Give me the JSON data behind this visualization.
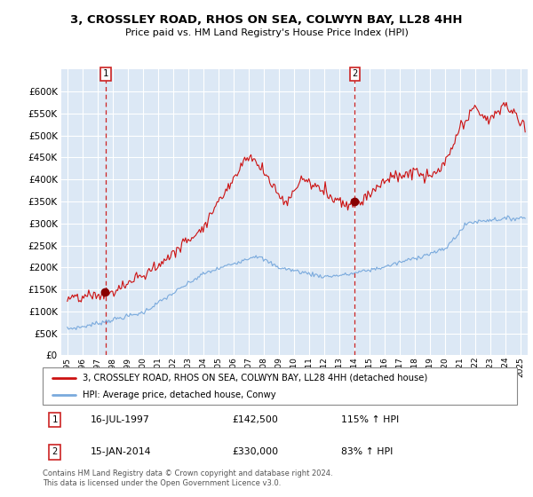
{
  "title": "3, CROSSLEY ROAD, RHOS ON SEA, COLWYN BAY, LL28 4HH",
  "subtitle": "Price paid vs. HM Land Registry's House Price Index (HPI)",
  "bg_color": "#dce8f5",
  "grid_color": "#c8d8ec",
  "red_line_color": "#cc1111",
  "blue_line_color": "#7aaadd",
  "sale1_date": 1997.54,
  "sale1_price": 142500,
  "sale2_date": 2014.04,
  "sale2_price": 330000,
  "ylim": [
    0,
    650000
  ],
  "yticks": [
    0,
    50000,
    100000,
    150000,
    200000,
    250000,
    300000,
    350000,
    400000,
    450000,
    500000,
    550000,
    600000
  ],
  "legend_label_red": "3, CROSSLEY ROAD, RHOS ON SEA, COLWYN BAY, LL28 4HH (detached house)",
  "legend_label_blue": "HPI: Average price, detached house, Conwy",
  "note1_label": "1",
  "note1_date": "16-JUL-1997",
  "note1_price": "£142,500",
  "note1_hpi": "115% ↑ HPI",
  "note2_label": "2",
  "note2_date": "15-JAN-2014",
  "note2_price": "£330,000",
  "note2_hpi": "83% ↑ HPI",
  "footer": "Contains HM Land Registry data © Crown copyright and database right 2024.\nThis data is licensed under the Open Government Licence v3.0."
}
